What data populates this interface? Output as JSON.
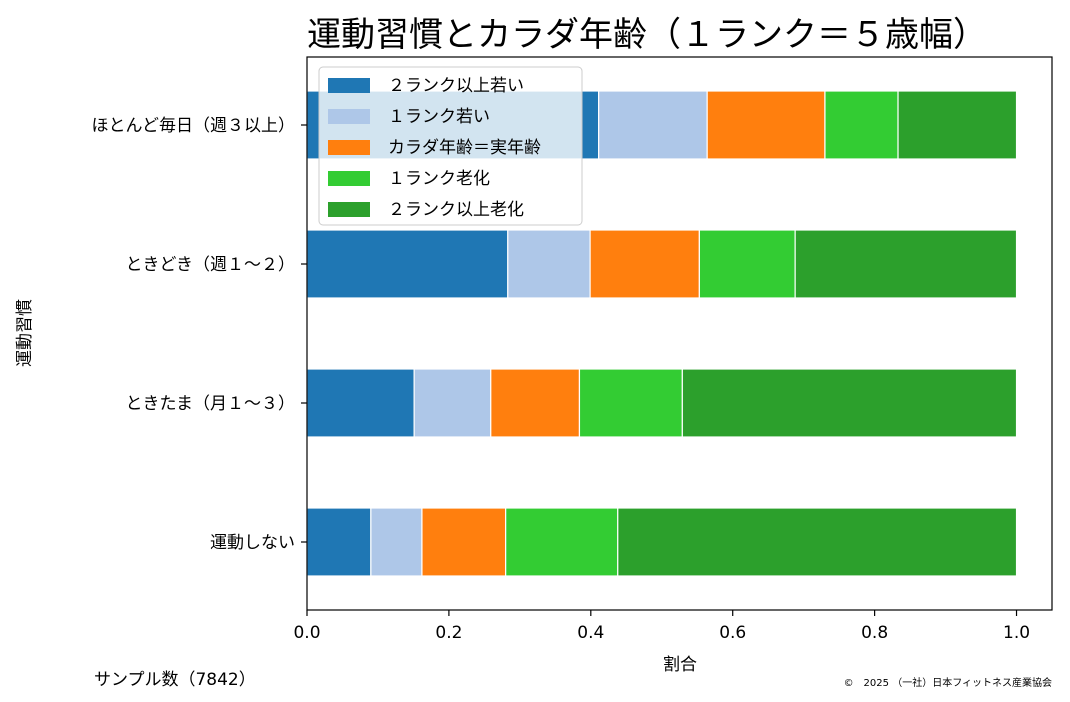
{
  "chart_data": {
    "type": "bar",
    "orientation": "horizontal",
    "stacked": true,
    "title": "運動習慣とカラダ年齢（１ランク＝５歳幅）",
    "xlabel": "割合",
    "ylabel": "運動習慣",
    "xlim": [
      0.0,
      1.05
    ],
    "xticks": [
      "0.0",
      "0.2",
      "0.4",
      "0.6",
      "0.8",
      "1.0"
    ],
    "grid": false,
    "legend_position": "top-left",
    "categories": [
      "ほとんど毎日（週３以上）",
      "ときどき（週１～２）",
      "ときたま（月１～３）",
      "運動しない"
    ],
    "series": [
      {
        "name": "２ランク以上若い",
        "color": "#1f77b4",
        "values": [
          0.411,
          0.283,
          0.151,
          0.09
        ]
      },
      {
        "name": "１ランク若い",
        "color": "#aec7e8",
        "values": [
          0.153,
          0.116,
          0.108,
          0.072
        ]
      },
      {
        "name": "カラダ年齢＝実年齢",
        "color": "#ff7f0e",
        "values": [
          0.166,
          0.154,
          0.125,
          0.118
        ]
      },
      {
        "name": "１ランク老化",
        "color": "#33cc33",
        "values": [
          0.103,
          0.135,
          0.145,
          0.158
        ]
      },
      {
        "name": "２ランク以上老化",
        "color": "#2ca02c",
        "values": [
          0.167,
          0.312,
          0.471,
          0.562
        ]
      }
    ]
  },
  "footer": {
    "sample": "サンプル数（7842）",
    "copyright": "©　2025 （一社）日本フィットネス産業協会"
  }
}
